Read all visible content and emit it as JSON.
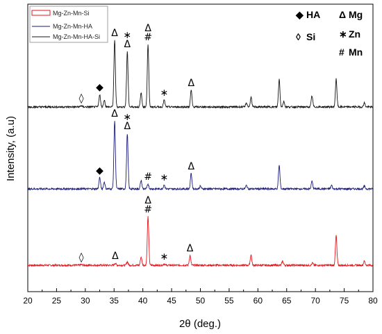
{
  "chart_data": {
    "type": "line",
    "xlabel": "2θ (deg.)",
    "ylabel": "Intensity, (a.u)",
    "xlim": [
      20,
      80
    ],
    "xticks": [
      20,
      25,
      30,
      35,
      40,
      45,
      50,
      55,
      60,
      65,
      70,
      75,
      80
    ],
    "y_tick_labels": "none",
    "grid": false,
    "legend": {
      "placement": "top-left",
      "entries": [
        "Mg-Zn-Mn-Si",
        "Mg-Zn-Mn-HA",
        "Mg-Zn-Mn-HA-Si"
      ]
    },
    "series": [
      {
        "name": "Mg-Zn-Mn-Si",
        "color": "#e8141c",
        "baseline": 0,
        "peaks": [
          {
            "x": 29.3,
            "h": 1
          },
          {
            "x": 35.2,
            "h": 3
          },
          {
            "x": 37.3,
            "h": 5
          },
          {
            "x": 39.7,
            "h": 12
          },
          {
            "x": 40.9,
            "h": 70
          },
          {
            "x": 43.7,
            "h": 2
          },
          {
            "x": 48.2,
            "h": 14
          },
          {
            "x": 58.8,
            "h": 15
          },
          {
            "x": 64.3,
            "h": 6
          },
          {
            "x": 69.5,
            "h": 3
          },
          {
            "x": 73.6,
            "h": 43
          },
          {
            "x": 78.5,
            "h": 6
          }
        ]
      },
      {
        "name": "Mg-Zn-Mn-HA",
        "color": "#1a1a7a",
        "baseline": 110,
        "peaks": [
          {
            "x": 32.5,
            "h": 16
          },
          {
            "x": 33.3,
            "h": 10
          },
          {
            "x": 35.1,
            "h": 98
          },
          {
            "x": 37.3,
            "h": 80
          },
          {
            "x": 39.7,
            "h": 12
          },
          {
            "x": 40.9,
            "h": 7
          },
          {
            "x": 43.7,
            "h": 6
          },
          {
            "x": 48.4,
            "h": 22
          },
          {
            "x": 50.0,
            "h": 4
          },
          {
            "x": 58.0,
            "h": 5
          },
          {
            "x": 63.7,
            "h": 34
          },
          {
            "x": 69.4,
            "h": 11
          },
          {
            "x": 72.8,
            "h": 5
          },
          {
            "x": 78.5,
            "h": 4
          }
        ]
      },
      {
        "name": "Mg-Zn-Mn-HA-Si",
        "color": "#141414",
        "baseline": 228,
        "peaks": [
          {
            "x": 29.3,
            "h": 2
          },
          {
            "x": 32.5,
            "h": 18
          },
          {
            "x": 33.3,
            "h": 10
          },
          {
            "x": 35.1,
            "h": 96
          },
          {
            "x": 37.3,
            "h": 80
          },
          {
            "x": 39.7,
            "h": 20
          },
          {
            "x": 40.9,
            "h": 90
          },
          {
            "x": 43.7,
            "h": 10
          },
          {
            "x": 48.4,
            "h": 24
          },
          {
            "x": 58.0,
            "h": 6
          },
          {
            "x": 58.8,
            "h": 14
          },
          {
            "x": 63.7,
            "h": 40
          },
          {
            "x": 64.5,
            "h": 8
          },
          {
            "x": 69.4,
            "h": 16
          },
          {
            "x": 73.6,
            "h": 40
          },
          {
            "x": 78.5,
            "h": 6
          }
        ]
      }
    ],
    "phase_key": [
      {
        "symbol": "◆",
        "label": "HA"
      },
      {
        "symbol": "Δ",
        "label": "Mg"
      },
      {
        "symbol": "◊",
        "label": "Si"
      },
      {
        "symbol": "∗",
        "label": "Zn"
      },
      {
        "symbol": "#",
        "label": "Mn"
      }
    ],
    "annotations": [
      {
        "series": 2,
        "x": 29.3,
        "symbol": "◊"
      },
      {
        "series": 2,
        "x": 32.5,
        "symbol": "◆"
      },
      {
        "series": 2,
        "x": 35.1,
        "symbol": "Δ"
      },
      {
        "series": 2,
        "x": 37.3,
        "symbol": "Δ"
      },
      {
        "series": 2,
        "x": 37.3,
        "symbol": "∗"
      },
      {
        "series": 2,
        "x": 40.9,
        "symbol": "#"
      },
      {
        "series": 2,
        "x": 40.9,
        "symbol": "Δ"
      },
      {
        "series": 2,
        "x": 43.7,
        "symbol": "∗"
      },
      {
        "series": 2,
        "x": 48.4,
        "symbol": "Δ"
      },
      {
        "series": 1,
        "x": 32.5,
        "symbol": "◆"
      },
      {
        "series": 1,
        "x": 35.1,
        "symbol": "Δ"
      },
      {
        "series": 1,
        "x": 37.3,
        "symbol": "Δ"
      },
      {
        "series": 1,
        "x": 37.3,
        "symbol": "∗"
      },
      {
        "series": 1,
        "x": 40.9,
        "symbol": "#"
      },
      {
        "series": 1,
        "x": 43.7,
        "symbol": "∗"
      },
      {
        "series": 1,
        "x": 48.4,
        "symbol": "Δ"
      },
      {
        "series": 0,
        "x": 29.3,
        "symbol": "◊"
      },
      {
        "series": 0,
        "x": 35.2,
        "symbol": "Δ"
      },
      {
        "series": 0,
        "x": 40.9,
        "symbol": "#"
      },
      {
        "series": 0,
        "x": 40.9,
        "symbol": "Δ"
      },
      {
        "series": 0,
        "x": 43.7,
        "symbol": "∗"
      },
      {
        "series": 0,
        "x": 48.2,
        "symbol": "Δ"
      }
    ]
  }
}
